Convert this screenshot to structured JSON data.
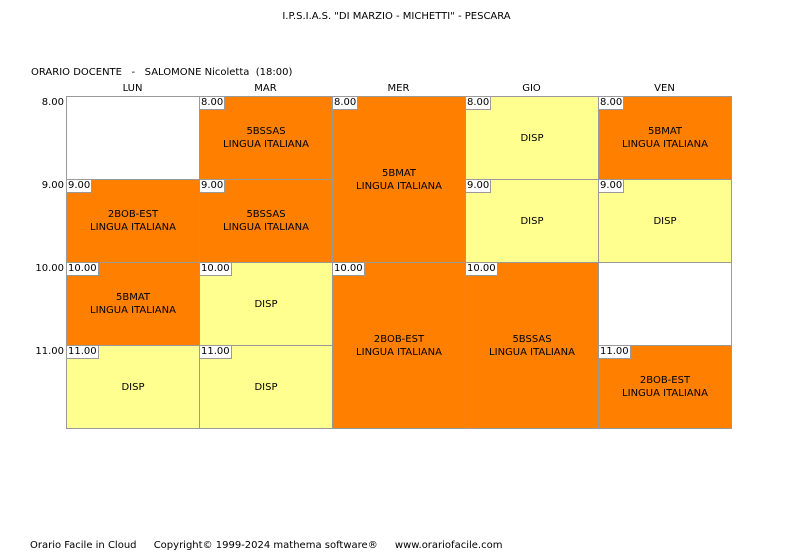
{
  "header": {
    "school": "I.P.S.I.A.S. \"DI MARZIO - MICHETTI\" - PESCARA",
    "teacher_line": "ORARIO DOCENTE   -   SALOMONE Nicoletta  (18:00)"
  },
  "days": [
    "LUN",
    "MAR",
    "MER",
    "GIO",
    "VEN"
  ],
  "hours": [
    "8.00",
    "9.00",
    "10.00",
    "11.00"
  ],
  "lessons": [
    {
      "time": "9.00",
      "line1": "2BOB-EST",
      "line2": "LINGUA ITALIANA",
      "type": "lesson"
    },
    {
      "time": "10.00",
      "line1": "5BMAT",
      "line2": "LINGUA ITALIANA",
      "type": "lesson"
    },
    {
      "time": "11.00",
      "line1": "DISP",
      "line2": "",
      "type": "disp"
    },
    {
      "time": "8.00",
      "line1": "5BSSAS",
      "line2": "LINGUA ITALIANA",
      "type": "lesson"
    },
    {
      "time": "9.00",
      "line1": "5BSSAS",
      "line2": "LINGUA ITALIANA",
      "type": "lesson"
    },
    {
      "time": "10.00",
      "line1": "DISP",
      "line2": "",
      "type": "disp"
    },
    {
      "time": "11.00",
      "line1": "DISP",
      "line2": "",
      "type": "disp"
    },
    {
      "time": "8.00",
      "line1": "5BMAT",
      "line2": "LINGUA ITALIANA",
      "type": "lesson"
    },
    {
      "time": "10.00",
      "line1": "2BOB-EST",
      "line2": "LINGUA ITALIANA",
      "type": "lesson"
    },
    {
      "time": "8.00",
      "line1": "DISP",
      "line2": "",
      "type": "disp"
    },
    {
      "time": "9.00",
      "line1": "DISP",
      "line2": "",
      "type": "disp"
    },
    {
      "time": "10.00",
      "line1": "5BSSAS",
      "line2": "LINGUA ITALIANA",
      "type": "lesson"
    },
    {
      "time": "8.00",
      "line1": "5BMAT",
      "line2": "LINGUA ITALIANA",
      "type": "lesson"
    },
    {
      "time": "9.00",
      "line1": "DISP",
      "line2": "",
      "type": "disp"
    },
    {
      "time": "11.00",
      "line1": "2BOB-EST",
      "line2": "LINGUA ITALIANA",
      "type": "lesson"
    }
  ],
  "colors": {
    "lesson": "#ff8000",
    "disp": "#ffff90",
    "empty": "#ffffff",
    "grid_line": "#9a9a9a"
  },
  "footer": {
    "product": "Orario Facile in Cloud",
    "copyright": "Copyright© 1999-2024 mathema software®",
    "website": "www.orariofacile.com"
  }
}
